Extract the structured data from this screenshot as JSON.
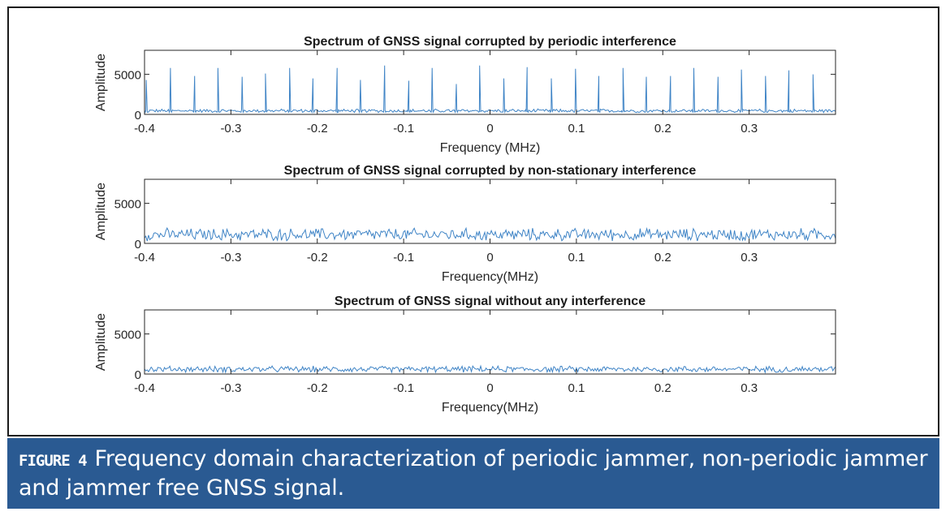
{
  "chart_data": [
    {
      "type": "line",
      "title": "Spectrum of GNSS signal corrupted by periodic interference",
      "xlabel": "Frequency (MHz)",
      "ylabel": "Amplitude",
      "xlim": [
        -0.4,
        0.4
      ],
      "ylim": [
        0,
        8000
      ],
      "xticks": [
        -0.4,
        -0.3,
        -0.2,
        -0.1,
        0,
        0.1,
        0.2,
        0.3
      ],
      "xtick_labels": [
        "-0.4",
        "-0.3",
        "-0.2",
        "-0.1",
        "0",
        "0.1",
        "0.2",
        "0.3"
      ],
      "yticks": [
        0,
        5000
      ],
      "ytick_labels": [
        "0",
        "5000"
      ],
      "series": [
        {
          "name": "periodic",
          "color": "#3f84c6",
          "baseline": 450,
          "noise": 250,
          "peak_x": [
            -0.398,
            -0.37,
            -0.342,
            -0.315,
            -0.287,
            -0.26,
            -0.232,
            -0.205,
            -0.177,
            -0.15,
            -0.122,
            -0.094,
            -0.067,
            -0.039,
            -0.012,
            0.016,
            0.043,
            0.071,
            0.099,
            0.126,
            0.154,
            0.181,
            0.209,
            0.236,
            0.264,
            0.291,
            0.319,
            0.346,
            0.374
          ],
          "peak_y": [
            4300,
            5800,
            4800,
            5800,
            4700,
            5100,
            5800,
            4500,
            5800,
            4300,
            6100,
            4200,
            5800,
            3800,
            6100,
            4500,
            5900,
            4500,
            5700,
            4800,
            5800,
            4700,
            4800,
            5800,
            4700,
            5600,
            4800,
            5500,
            5000
          ]
        }
      ]
    },
    {
      "type": "line",
      "title": "Spectrum of GNSS signal corrupted by non-stationary interference",
      "xlabel": "Frequency(MHz)",
      "ylabel": "Amplitude",
      "xlim": [
        -0.4,
        0.4
      ],
      "ylim": [
        0,
        8000
      ],
      "xticks": [
        -0.4,
        -0.3,
        -0.2,
        -0.1,
        0,
        0.1,
        0.2,
        0.3
      ],
      "xtick_labels": [
        "-0.4",
        "-0.3",
        "-0.2",
        "-0.1",
        "0",
        "0.1",
        "0.2",
        "0.3"
      ],
      "yticks": [
        0,
        5000
      ],
      "ytick_labels": [
        "0",
        "5000"
      ],
      "series": [
        {
          "name": "non-stationary",
          "color": "#3f84c6",
          "baseline": 1100,
          "noise": 900,
          "peak_x": [],
          "peak_y": []
        }
      ]
    },
    {
      "type": "line",
      "title": "Spectrum of GNSS signal without any interference",
      "xlabel": "Frequency(MHz)",
      "ylabel": "Amplitude",
      "xlim": [
        -0.4,
        0.4
      ],
      "ylim": [
        0,
        8000
      ],
      "xticks": [
        -0.4,
        -0.3,
        -0.2,
        -0.1,
        0,
        0.1,
        0.2,
        0.3
      ],
      "xtick_labels": [
        "-0.4",
        "-0.3",
        "-0.2",
        "-0.1",
        "0",
        "0.1",
        "0.2",
        "0.3"
      ],
      "yticks": [
        0,
        5000
      ],
      "ytick_labels": [
        "0",
        "5000"
      ],
      "series": [
        {
          "name": "clean",
          "color": "#3f84c6",
          "baseline": 600,
          "noise": 450,
          "peak_x": [],
          "peak_y": []
        }
      ]
    }
  ],
  "caption": {
    "label": "FIGURE 4",
    "text": "Frequency domain characterization of periodic jammer, non-periodic jammer and jammer free GNSS signal."
  }
}
